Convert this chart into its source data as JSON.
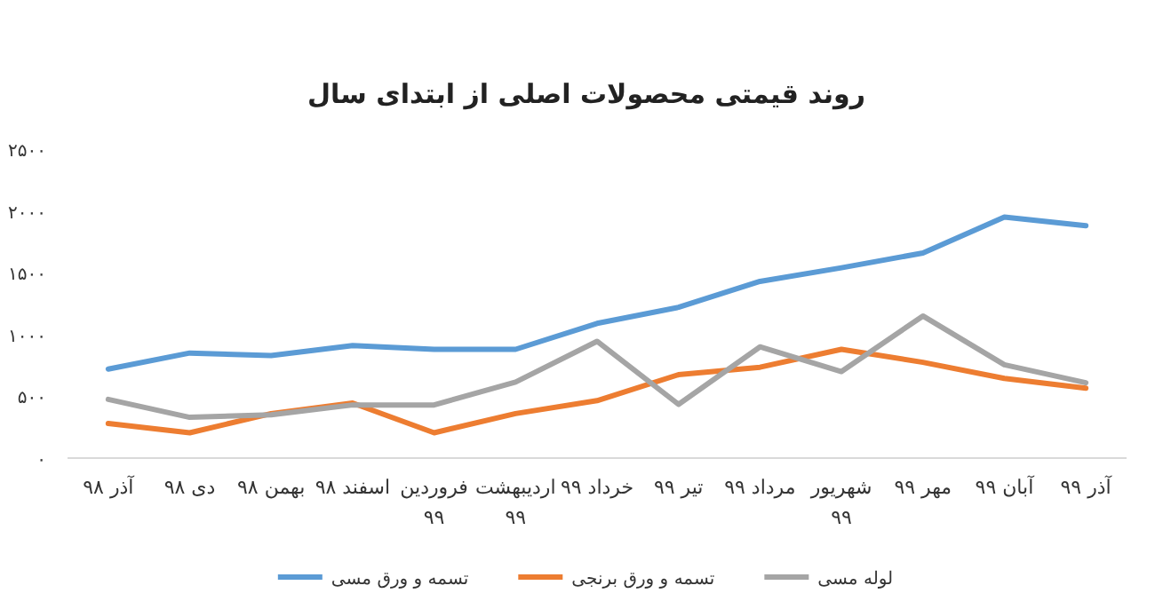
{
  "chart_data": {
    "type": "line",
    "title": "روند قیمتی محصولات اصلی از ابتدای سال",
    "categories": [
      "آذر ۹۸",
      "دی ۹۸",
      "بهمن ۹۸",
      "اسفند ۹۸",
      "فروردین ۹۹",
      "اردیبهشت ۹۹",
      "خرداد ۹۹",
      "تیر ۹۹",
      "مرداد ۹۹",
      "شهریور ۹۹",
      "مهر ۹۹",
      "آبان ۹۹",
      "آذر ۹۹"
    ],
    "series": [
      {
        "name": "تسمه و ورق مسی",
        "color": "#5b9bd5",
        "values": [
          720,
          850,
          830,
          910,
          880,
          880,
          1090,
          1220,
          1430,
          1540,
          1660,
          1950,
          1880
        ]
      },
      {
        "name": "تسمه و ورق برنجی",
        "color": "#ed7d31",
        "values": [
          280,
          205,
          360,
          445,
          205,
          360,
          465,
          675,
          735,
          880,
          775,
          645,
          565
        ]
      },
      {
        "name": "لوله مسی",
        "color": "#a5a5a5",
        "values": [
          475,
          330,
          350,
          430,
          430,
          615,
          945,
          435,
          900,
          700,
          1150,
          755,
          610
        ]
      }
    ],
    "ylim": [
      0,
      2500
    ],
    "yticks": [
      {
        "value": 0,
        "label": "۰"
      },
      {
        "value": 500,
        "label": "۵۰۰"
      },
      {
        "value": 1000,
        "label": "۱۰۰۰"
      },
      {
        "value": 1500,
        "label": "۱۵۰۰"
      },
      {
        "value": 2000,
        "label": "۲۰۰۰"
      },
      {
        "value": 2500,
        "label": "۲۵۰۰"
      }
    ],
    "grid": false,
    "legend": "bottom",
    "marker": "none",
    "line_style": "solid"
  }
}
